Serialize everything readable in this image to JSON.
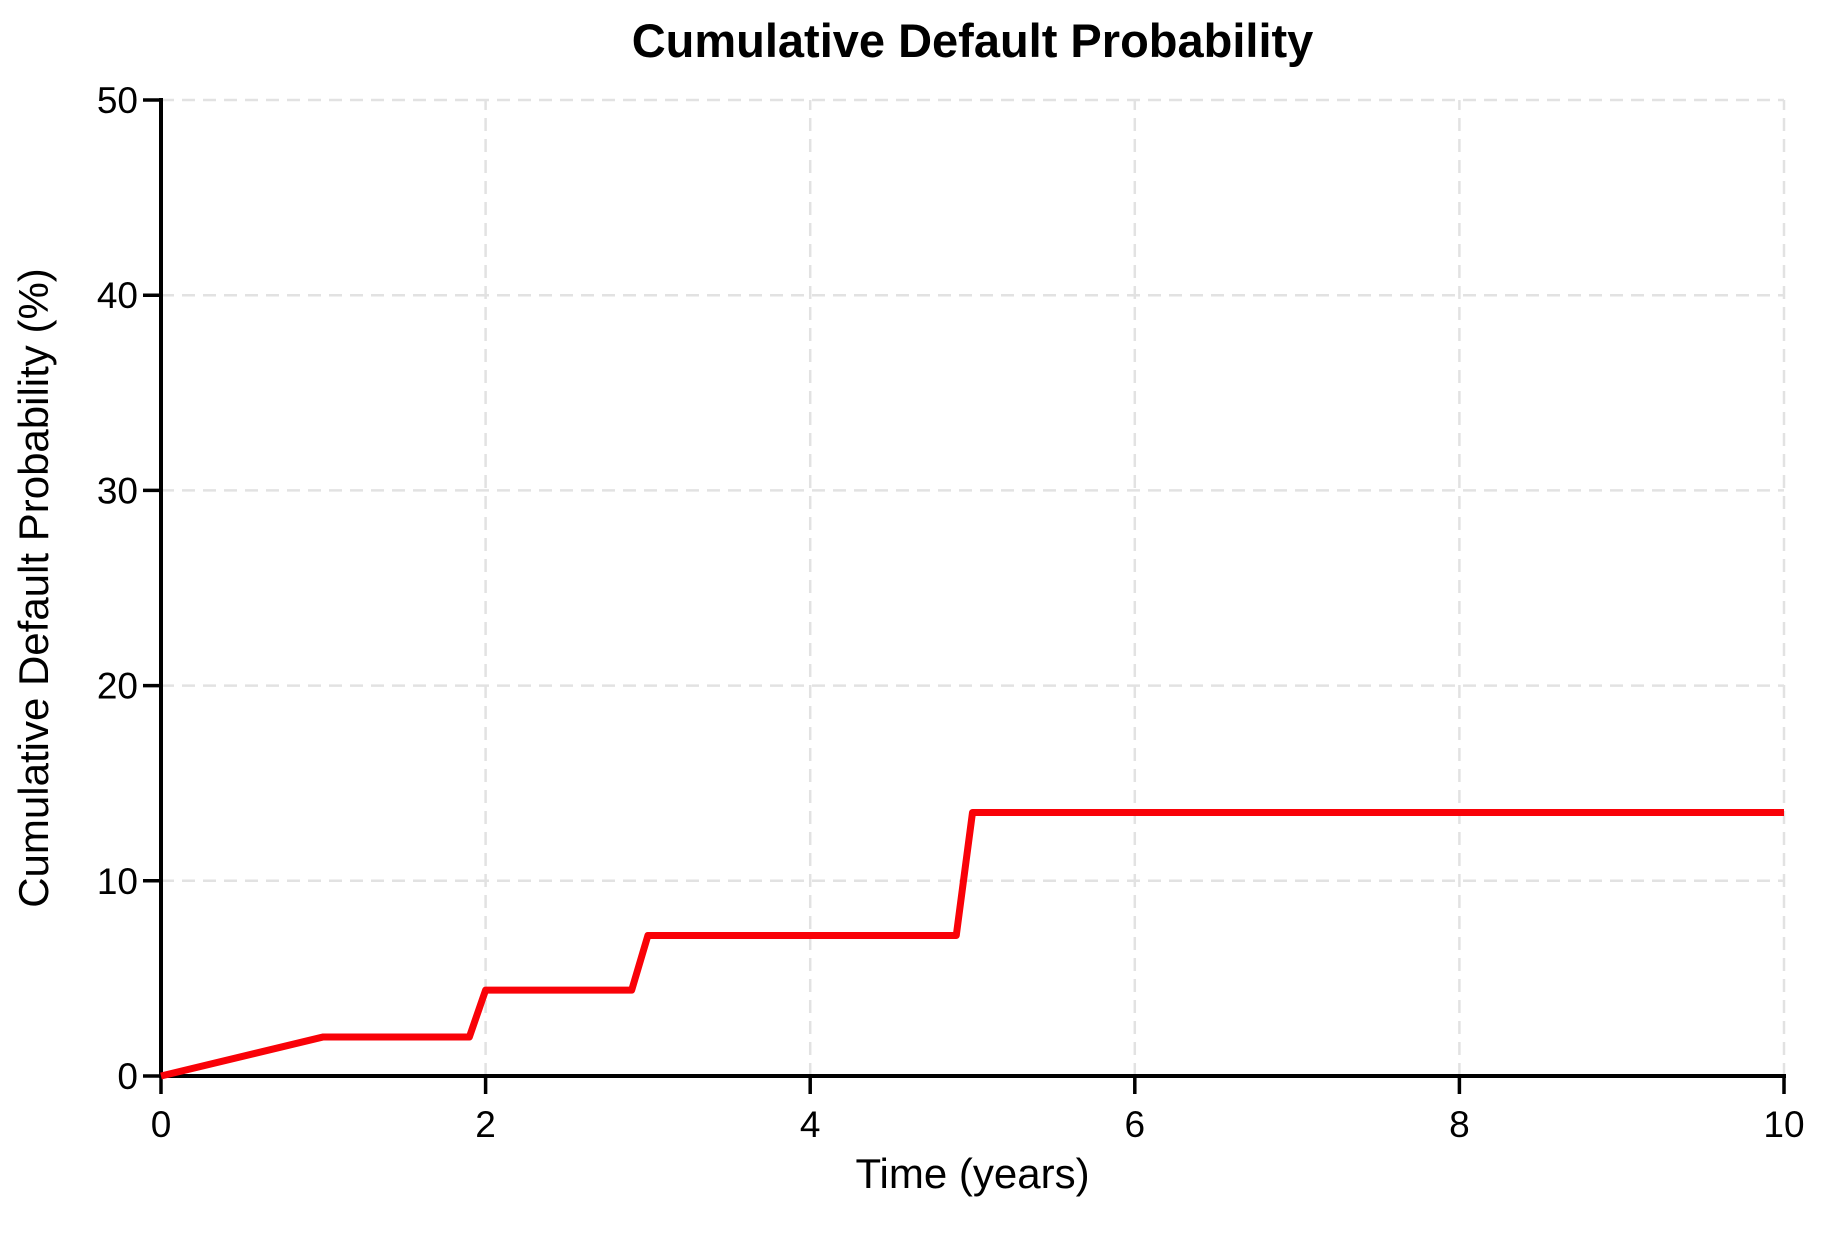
{
  "chart_data": {
    "type": "line",
    "title": "Cumulative Default Probability",
    "xlabel": "Time (years)",
    "ylabel": "Cumulative Default Probability (%)",
    "xlim": [
      0,
      10
    ],
    "ylim": [
      0,
      50
    ],
    "x_ticks": [
      0,
      2,
      4,
      6,
      8,
      10
    ],
    "y_ticks": [
      0,
      10,
      20,
      30,
      40,
      50
    ],
    "grid": {
      "visible": true,
      "style": "dashed",
      "color": "#e2e2e2"
    },
    "legend": "none",
    "series": [
      {
        "name": "Cumulative Default Probability",
        "color": "#f90208",
        "line_width": 7,
        "points": [
          [
            0,
            0
          ],
          [
            1,
            2.0
          ],
          [
            1.9,
            2.0
          ],
          [
            2.0,
            4.4
          ],
          [
            2.9,
            4.4
          ],
          [
            3.0,
            7.2
          ],
          [
            4.9,
            7.2
          ],
          [
            5.0,
            13.5
          ],
          [
            10,
            13.5
          ]
        ]
      }
    ]
  },
  "colors": {
    "axis": "#000000",
    "background": "#ffffff"
  }
}
